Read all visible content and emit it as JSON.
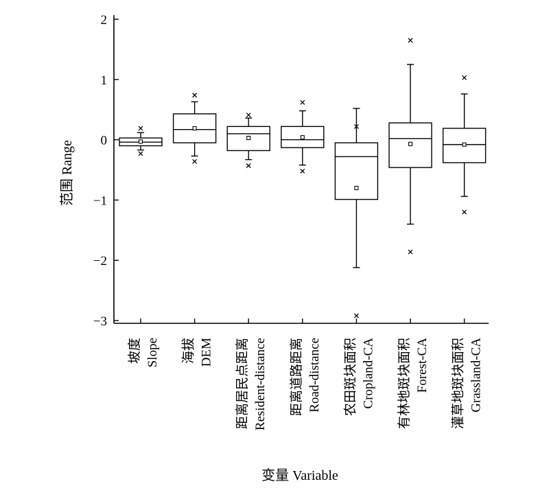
{
  "chart_data": {
    "type": "box",
    "title": "",
    "xlabel": "变量 Variable",
    "ylabel": "范围 Range",
    "ylim": [
      -3,
      2
    ],
    "yticks": [
      2,
      1,
      0,
      -1,
      -2,
      -3
    ],
    "grid": false,
    "legend": "none",
    "categories": [
      {
        "zh": "坡度",
        "en": "Slope"
      },
      {
        "zh": "海拔",
        "en": "DEM"
      },
      {
        "zh": "距离居民点距离",
        "en": "Resident-distance"
      },
      {
        "zh": "距离道路距离",
        "en": "Road-distance"
      },
      {
        "zh": "农田斑块面积",
        "en": "Cropland-CA"
      },
      {
        "zh": "有林地斑块面积",
        "en": "Forest-CA"
      },
      {
        "zh": "灌草地斑块面积",
        "en": "Grassland-CA"
      }
    ],
    "boxes": [
      {
        "whisker_low": -0.17,
        "q1": -0.1,
        "median": -0.04,
        "q3": 0.03,
        "whisker_high": 0.12,
        "mean": -0.03,
        "outliers": [
          0.19,
          -0.23
        ]
      },
      {
        "whisker_low": -0.27,
        "q1": -0.05,
        "median": 0.17,
        "q3": 0.43,
        "whisker_high": 0.63,
        "mean": 0.19,
        "outliers": [
          0.74,
          -0.36
        ]
      },
      {
        "whisker_low": -0.33,
        "q1": -0.18,
        "median": 0.1,
        "q3": 0.22,
        "whisker_high": 0.36,
        "mean": 0.03,
        "outliers": [
          0.41,
          -0.43
        ]
      },
      {
        "whisker_low": -0.42,
        "q1": -0.13,
        "median": 0.0,
        "q3": 0.22,
        "whisker_high": 0.48,
        "mean": 0.04,
        "outliers": [
          0.62,
          -0.52
        ]
      },
      {
        "whisker_low": -2.12,
        "q1": -0.99,
        "median": -0.28,
        "q3": -0.05,
        "whisker_high": 0.52,
        "mean": -0.8,
        "outliers": [
          0.22,
          -2.92
        ]
      },
      {
        "whisker_low": -1.4,
        "q1": -0.46,
        "median": 0.02,
        "q3": 0.28,
        "whisker_high": 1.25,
        "mean": -0.07,
        "outliers": [
          1.65,
          -1.86
        ]
      },
      {
        "whisker_low": -0.94,
        "q1": -0.38,
        "median": -0.08,
        "q3": 0.19,
        "whisker_high": 0.76,
        "mean": -0.08,
        "outliers": [
          1.03,
          -1.2
        ]
      }
    ]
  }
}
